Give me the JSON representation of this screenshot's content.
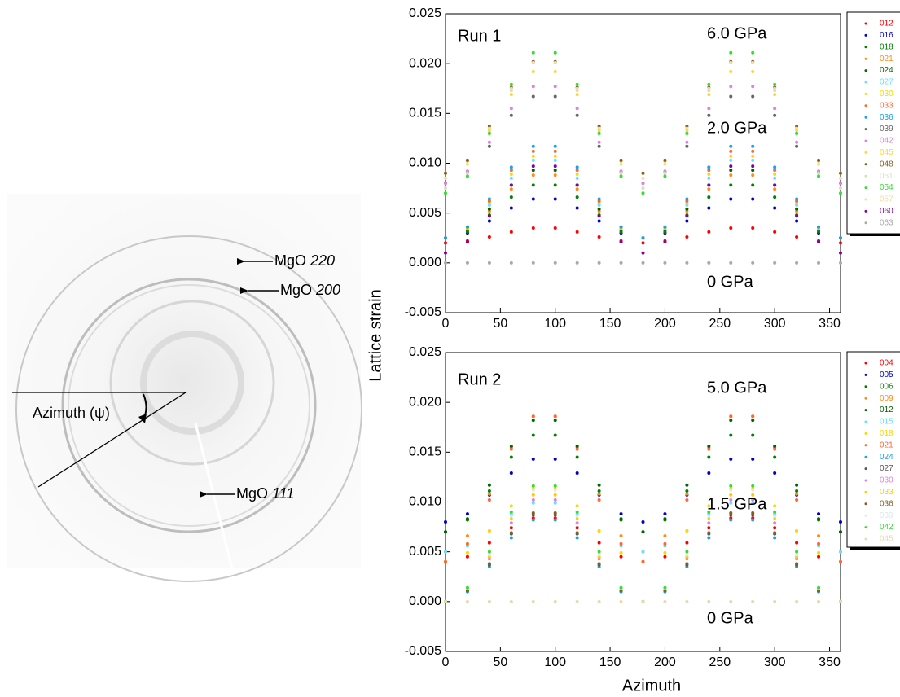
{
  "diffraction_image": {
    "azimuth_label": "Azimuth (ψ)",
    "annotations": [
      {
        "name": "MgO",
        "hkl": "220"
      },
      {
        "name": "MgO",
        "hkl": "200"
      },
      {
        "name": "MgO",
        "hkl": "111"
      }
    ]
  },
  "chart_data": [
    {
      "type": "scatter",
      "y_label": "Lattice strain",
      "annotations": [
        "Run 1",
        "6.0 GPa",
        "2.0 GPa",
        "0 GPa"
      ],
      "xlim": [
        0,
        360
      ],
      "xticks": [
        0,
        50,
        100,
        150,
        200,
        250,
        300,
        350
      ],
      "ylim": [
        -0.005,
        0.025
      ],
      "yticks": [
        {
          "value": -0.005,
          "label": "-0.005"
        },
        {
          "value": 0,
          "label": "0.000"
        },
        {
          "value": 0.005,
          "label": "0.005"
        },
        {
          "value": 0.01,
          "label": "0.010"
        },
        {
          "value": 0.015,
          "label": "0.015"
        },
        {
          "value": 0.02,
          "label": "0.020"
        },
        {
          "value": 0.025,
          "label": "0.025"
        }
      ],
      "x": [
        0,
        20,
        40,
        60,
        80,
        100,
        120,
        140,
        160,
        180,
        200,
        220,
        240,
        260,
        280,
        300,
        320,
        340,
        360
      ],
      "series": [
        {
          "name": "012",
          "color": "#ff0000",
          "values": [
            0.002,
            0.0022,
            0.0026,
            0.0031,
            0.0035,
            0.0035,
            0.0031,
            0.0026,
            0.0022,
            0.002,
            0.0022,
            0.0026,
            0.0031,
            0.0035,
            0.0035,
            0.0031,
            0.0026,
            0.0022,
            0.002
          ]
        },
        {
          "name": "016",
          "color": "#0000cc",
          "values": [
            0.0025,
            0.003,
            0.0042,
            0.0055,
            0.0064,
            0.0064,
            0.0055,
            0.0042,
            0.003,
            0.0025,
            0.003,
            0.0042,
            0.0055,
            0.0064,
            0.0064,
            0.0055,
            0.0042,
            0.003,
            0.0025
          ]
        },
        {
          "name": "018",
          "color": "#008000",
          "values": [
            0.0025,
            0.0031,
            0.0048,
            0.0066,
            0.0078,
            0.0078,
            0.0066,
            0.0048,
            0.0031,
            0.0025,
            0.0031,
            0.0048,
            0.0066,
            0.0078,
            0.0078,
            0.0066,
            0.0048,
            0.0031,
            0.0025
          ]
        },
        {
          "name": "021",
          "color": "#ff8c1a",
          "values": [
            0.0025,
            0.0033,
            0.0052,
            0.0074,
            0.0088,
            0.0088,
            0.0074,
            0.0052,
            0.0033,
            0.0025,
            0.0033,
            0.0052,
            0.0074,
            0.0088,
            0.0088,
            0.0074,
            0.0052,
            0.0033,
            0.0025
          ]
        },
        {
          "name": "024",
          "color": "#006400",
          "values": [
            0.0025,
            0.0033,
            0.0054,
            0.0078,
            0.0093,
            0.0093,
            0.0078,
            0.0054,
            0.0033,
            0.0025,
            0.0033,
            0.0054,
            0.0078,
            0.0093,
            0.0093,
            0.0078,
            0.0054,
            0.0033,
            0.0025
          ]
        },
        {
          "name": "027",
          "color": "#66e0ff",
          "values": [
            0.0025,
            0.0034,
            0.0058,
            0.0085,
            0.0103,
            0.0103,
            0.0085,
            0.0058,
            0.0034,
            0.0025,
            0.0034,
            0.0058,
            0.0085,
            0.0103,
            0.0103,
            0.0085,
            0.0058,
            0.0034,
            0.0025
          ]
        },
        {
          "name": "030",
          "color": "#ffd700",
          "values": [
            0.0025,
            0.0035,
            0.006,
            0.0089,
            0.0107,
            0.0107,
            0.0089,
            0.006,
            0.0035,
            0.0025,
            0.0035,
            0.006,
            0.0089,
            0.0107,
            0.0107,
            0.0089,
            0.006,
            0.0035,
            0.0025
          ]
        },
        {
          "name": "033",
          "color": "#ff6633",
          "values": [
            0.0025,
            0.0036,
            0.0062,
            0.0093,
            0.0112,
            0.0112,
            0.0093,
            0.0062,
            0.0036,
            0.0025,
            0.0036,
            0.0062,
            0.0093,
            0.0112,
            0.0112,
            0.0093,
            0.0062,
            0.0036,
            0.0025
          ]
        },
        {
          "name": "036",
          "color": "#1aa3e0",
          "values": [
            0.0025,
            0.0036,
            0.0064,
            0.0096,
            0.0117,
            0.0117,
            0.0096,
            0.0064,
            0.0036,
            0.0025,
            0.0036,
            0.0064,
            0.0096,
            0.0117,
            0.0117,
            0.0096,
            0.0064,
            0.0036,
            0.0025
          ]
        },
        {
          "name": "039",
          "color": "#666666",
          "values": [
            0.008,
            0.0091,
            0.0117,
            0.0148,
            0.0167,
            0.0167,
            0.0148,
            0.0117,
            0.0091,
            0.008,
            0.0091,
            0.0117,
            0.0148,
            0.0167,
            0.0167,
            0.0148,
            0.0117,
            0.0091,
            0.008
          ]
        },
        {
          "name": "042",
          "color": "#e080e0",
          "values": [
            0.008,
            0.0092,
            0.0121,
            0.0155,
            0.0177,
            0.0177,
            0.0155,
            0.0121,
            0.0092,
            0.008,
            0.0092,
            0.0121,
            0.0155,
            0.0177,
            0.0177,
            0.0155,
            0.0121,
            0.0092,
            0.008
          ]
        },
        {
          "name": "045",
          "color": "#ffd633",
          "values": [
            0.009,
            0.0102,
            0.0133,
            0.0169,
            0.0192,
            0.0192,
            0.0169,
            0.0133,
            0.0102,
            0.009,
            0.0102,
            0.0133,
            0.0169,
            0.0192,
            0.0192,
            0.0169,
            0.0133,
            0.0102,
            0.009
          ]
        },
        {
          "name": "048",
          "color": "#806020",
          "values": [
            0.009,
            0.0103,
            0.0137,
            0.0176,
            0.0202,
            0.0202,
            0.0176,
            0.0137,
            0.0103,
            0.009,
            0.0103,
            0.0137,
            0.0176,
            0.0202,
            0.0202,
            0.0176,
            0.0137,
            0.0103,
            0.009
          ]
        },
        {
          "name": "051",
          "color": "#dcdcc0",
          "values": [
            0.0075,
            0.009,
            0.0129,
            0.0173,
            0.0201,
            0.0201,
            0.0173,
            0.0129,
            0.009,
            0.0075,
            0.009,
            0.0129,
            0.0173,
            0.0201,
            0.0201,
            0.0173,
            0.0129,
            0.009,
            0.0075
          ]
        },
        {
          "name": "054",
          "color": "#33dd33",
          "values": [
            0.007,
            0.0087,
            0.013,
            0.0179,
            0.0211,
            0.0211,
            0.0179,
            0.013,
            0.0087,
            0.007,
            0.0087,
            0.013,
            0.0179,
            0.0211,
            0.0211,
            0.0179,
            0.013,
            0.0087,
            0.007
          ]
        },
        {
          "name": "057",
          "color": "#f0dca8",
          "values": [
            0.0085,
            0.0099,
            0.0135,
            0.0175,
            0.0201,
            0.0201,
            0.0175,
            0.0135,
            0.0099,
            0.0085,
            0.0099,
            0.0135,
            0.0175,
            0.0201,
            0.0201,
            0.0175,
            0.0135,
            0.0099,
            0.0085
          ]
        },
        {
          "name": "060",
          "color": "#8000a0",
          "values": [
            0.001,
            0.0021,
            0.0047,
            0.0078,
            0.0097,
            0.0097,
            0.0078,
            0.0047,
            0.0021,
            0.001,
            0.0021,
            0.0047,
            0.0078,
            0.0097,
            0.0097,
            0.0078,
            0.0047,
            0.0021,
            0.001
          ]
        },
        {
          "name": "063",
          "color": "#aaaaaa",
          "values": [
            0,
            0,
            0,
            0,
            0,
            0,
            0,
            0,
            0,
            0,
            0,
            0,
            0,
            0,
            0,
            0,
            0,
            0,
            0
          ]
        }
      ]
    },
    {
      "type": "scatter",
      "x_label": "Azimuth",
      "annotations": [
        "Run 2",
        "5.0 GPa",
        "1.5 GPa",
        "0 GPa"
      ],
      "xlim": [
        0,
        360
      ],
      "xticks": [
        0,
        50,
        100,
        150,
        200,
        250,
        300,
        350
      ],
      "ylim": [
        -0.005,
        0.025
      ],
      "yticks": [
        {
          "value": -0.005,
          "label": "-0.005"
        },
        {
          "value": 0,
          "label": "0.000"
        },
        {
          "value": 0.005,
          "label": "0.005"
        },
        {
          "value": 0.01,
          "label": "0.010"
        },
        {
          "value": 0.015,
          "label": "0.015"
        },
        {
          "value": 0.02,
          "label": "0.020"
        },
        {
          "value": 0.025,
          "label": "0.025"
        }
      ],
      "x": [
        0,
        20,
        40,
        60,
        80,
        100,
        120,
        140,
        160,
        180,
        200,
        220,
        240,
        260,
        280,
        300,
        320,
        340,
        360
      ],
      "series": [
        {
          "name": "004",
          "color": "#ff0000",
          "values": [
            0.004,
            0.0045,
            0.0059,
            0.0074,
            0.0084,
            0.0084,
            0.0074,
            0.0059,
            0.0045,
            0.004,
            0.0045,
            0.0059,
            0.0074,
            0.0084,
            0.0084,
            0.0074,
            0.0059,
            0.0045,
            0.004
          ]
        },
        {
          "name": "005",
          "color": "#0000cc",
          "values": [
            0.008,
            0.0088,
            0.0107,
            0.0129,
            0.0143,
            0.0143,
            0.0129,
            0.0107,
            0.0088,
            0.008,
            0.0088,
            0.0107,
            0.0129,
            0.0143,
            0.0143,
            0.0129,
            0.0107,
            0.0088,
            0.008
          ]
        },
        {
          "name": "006",
          "color": "#008000",
          "values": [
            0.007,
            0.0082,
            0.0111,
            0.0145,
            0.0167,
            0.0167,
            0.0145,
            0.0111,
            0.0082,
            0.007,
            0.0082,
            0.0111,
            0.0145,
            0.0167,
            0.0167,
            0.0145,
            0.0111,
            0.0082,
            0.007
          ]
        },
        {
          "name": "009",
          "color": "#ff8c1a",
          "values": [
            0.005,
            0.0066,
            0.0108,
            0.0155,
            0.0186,
            0.0186,
            0.0155,
            0.0108,
            0.0066,
            0.005,
            0.0066,
            0.0108,
            0.0155,
            0.0186,
            0.0186,
            0.0155,
            0.0108,
            0.0066,
            0.005
          ]
        },
        {
          "name": "012",
          "color": "#006400",
          "values": [
            0.007,
            0.0083,
            0.0117,
            0.0156,
            0.0182,
            0.0182,
            0.0156,
            0.0117,
            0.0083,
            0.007,
            0.0083,
            0.0117,
            0.0156,
            0.0182,
            0.0182,
            0.0156,
            0.0117,
            0.0083,
            0.007
          ]
        },
        {
          "name": "015",
          "color": "#66e0ff",
          "values": [
            0.005,
            0.0056,
            0.0071,
            0.0088,
            0.0099,
            0.0099,
            0.0088,
            0.0071,
            0.0056,
            0.005,
            0.0056,
            0.0071,
            0.0088,
            0.0099,
            0.0099,
            0.0088,
            0.0071,
            0.0056,
            0.005
          ]
        },
        {
          "name": "018",
          "color": "#ffd700",
          "values": [
            0.004,
            0.0049,
            0.0071,
            0.0096,
            0.0113,
            0.0113,
            0.0096,
            0.0071,
            0.0049,
            0.004,
            0.0049,
            0.0071,
            0.0096,
            0.0113,
            0.0113,
            0.0096,
            0.0071,
            0.0049,
            0.004
          ]
        },
        {
          "name": "021",
          "color": "#ff6633",
          "values": [
            0.004,
            0.0058,
            0.0102,
            0.0153,
            0.0186,
            0.0186,
            0.0153,
            0.0102,
            0.0058,
            0.004,
            0.0058,
            0.0102,
            0.0153,
            0.0186,
            0.0186,
            0.0153,
            0.0102,
            0.0058,
            0.004
          ]
        },
        {
          "name": "024",
          "color": "#1aa3e0",
          "values": [
            0,
            0.001,
            0.0035,
            0.0064,
            0.0082,
            0.0082,
            0.0064,
            0.0035,
            0.001,
            0,
            0.001,
            0.0035,
            0.0064,
            0.0082,
            0.0082,
            0.0064,
            0.0035,
            0.001,
            0
          ]
        },
        {
          "name": "027",
          "color": "#555555",
          "values": [
            0,
            0.0011,
            0.0037,
            0.0068,
            0.0087,
            0.0087,
            0.0068,
            0.0037,
            0.0011,
            0,
            0.0011,
            0.0037,
            0.0068,
            0.0087,
            0.0087,
            0.0068,
            0.0037,
            0.0011,
            0
          ]
        },
        {
          "name": "030",
          "color": "#e080e0",
          "values": [
            0,
            0.0012,
            0.0043,
            0.0079,
            0.0102,
            0.0102,
            0.0079,
            0.0043,
            0.0012,
            0,
            0.0012,
            0.0043,
            0.0079,
            0.0102,
            0.0102,
            0.0079,
            0.0043,
            0.0012,
            0
          ]
        },
        {
          "name": "033",
          "color": "#ffcc00",
          "values": [
            0,
            0.0013,
            0.0045,
            0.0083,
            0.0107,
            0.0107,
            0.0083,
            0.0045,
            0.0013,
            0,
            0.0013,
            0.0045,
            0.0083,
            0.0107,
            0.0107,
            0.0083,
            0.0045,
            0.0013,
            0
          ]
        },
        {
          "name": "036",
          "color": "#806020",
          "values": [
            0,
            0.0011,
            0.0038,
            0.0069,
            0.0089,
            0.0089,
            0.0069,
            0.0038,
            0.0011,
            0,
            0.0011,
            0.0038,
            0.0069,
            0.0089,
            0.0089,
            0.0069,
            0.0038,
            0.0011,
            0
          ]
        },
        {
          "name": "039",
          "color": "#dde8e8",
          "values": [
            0,
            0.0013,
            0.0047,
            0.0086,
            0.0112,
            0.0112,
            0.0086,
            0.0047,
            0.0013,
            0,
            0.0013,
            0.0047,
            0.0086,
            0.0112,
            0.0112,
            0.0086,
            0.0047,
            0.0013,
            0
          ]
        },
        {
          "name": "042",
          "color": "#33dd33",
          "values": [
            0,
            0.0014,
            0.005,
            0.009,
            0.0116,
            0.0116,
            0.009,
            0.005,
            0.0014,
            0,
            0.0014,
            0.005,
            0.009,
            0.0116,
            0.0116,
            0.009,
            0.005,
            0.0014,
            0
          ]
        },
        {
          "name": "045",
          "color": "#e6dcb4",
          "values": [
            0,
            0,
            0,
            0,
            0,
            0,
            0,
            0,
            0,
            0,
            0,
            0,
            0,
            0,
            0,
            0,
            0,
            0,
            0
          ]
        }
      ]
    }
  ]
}
